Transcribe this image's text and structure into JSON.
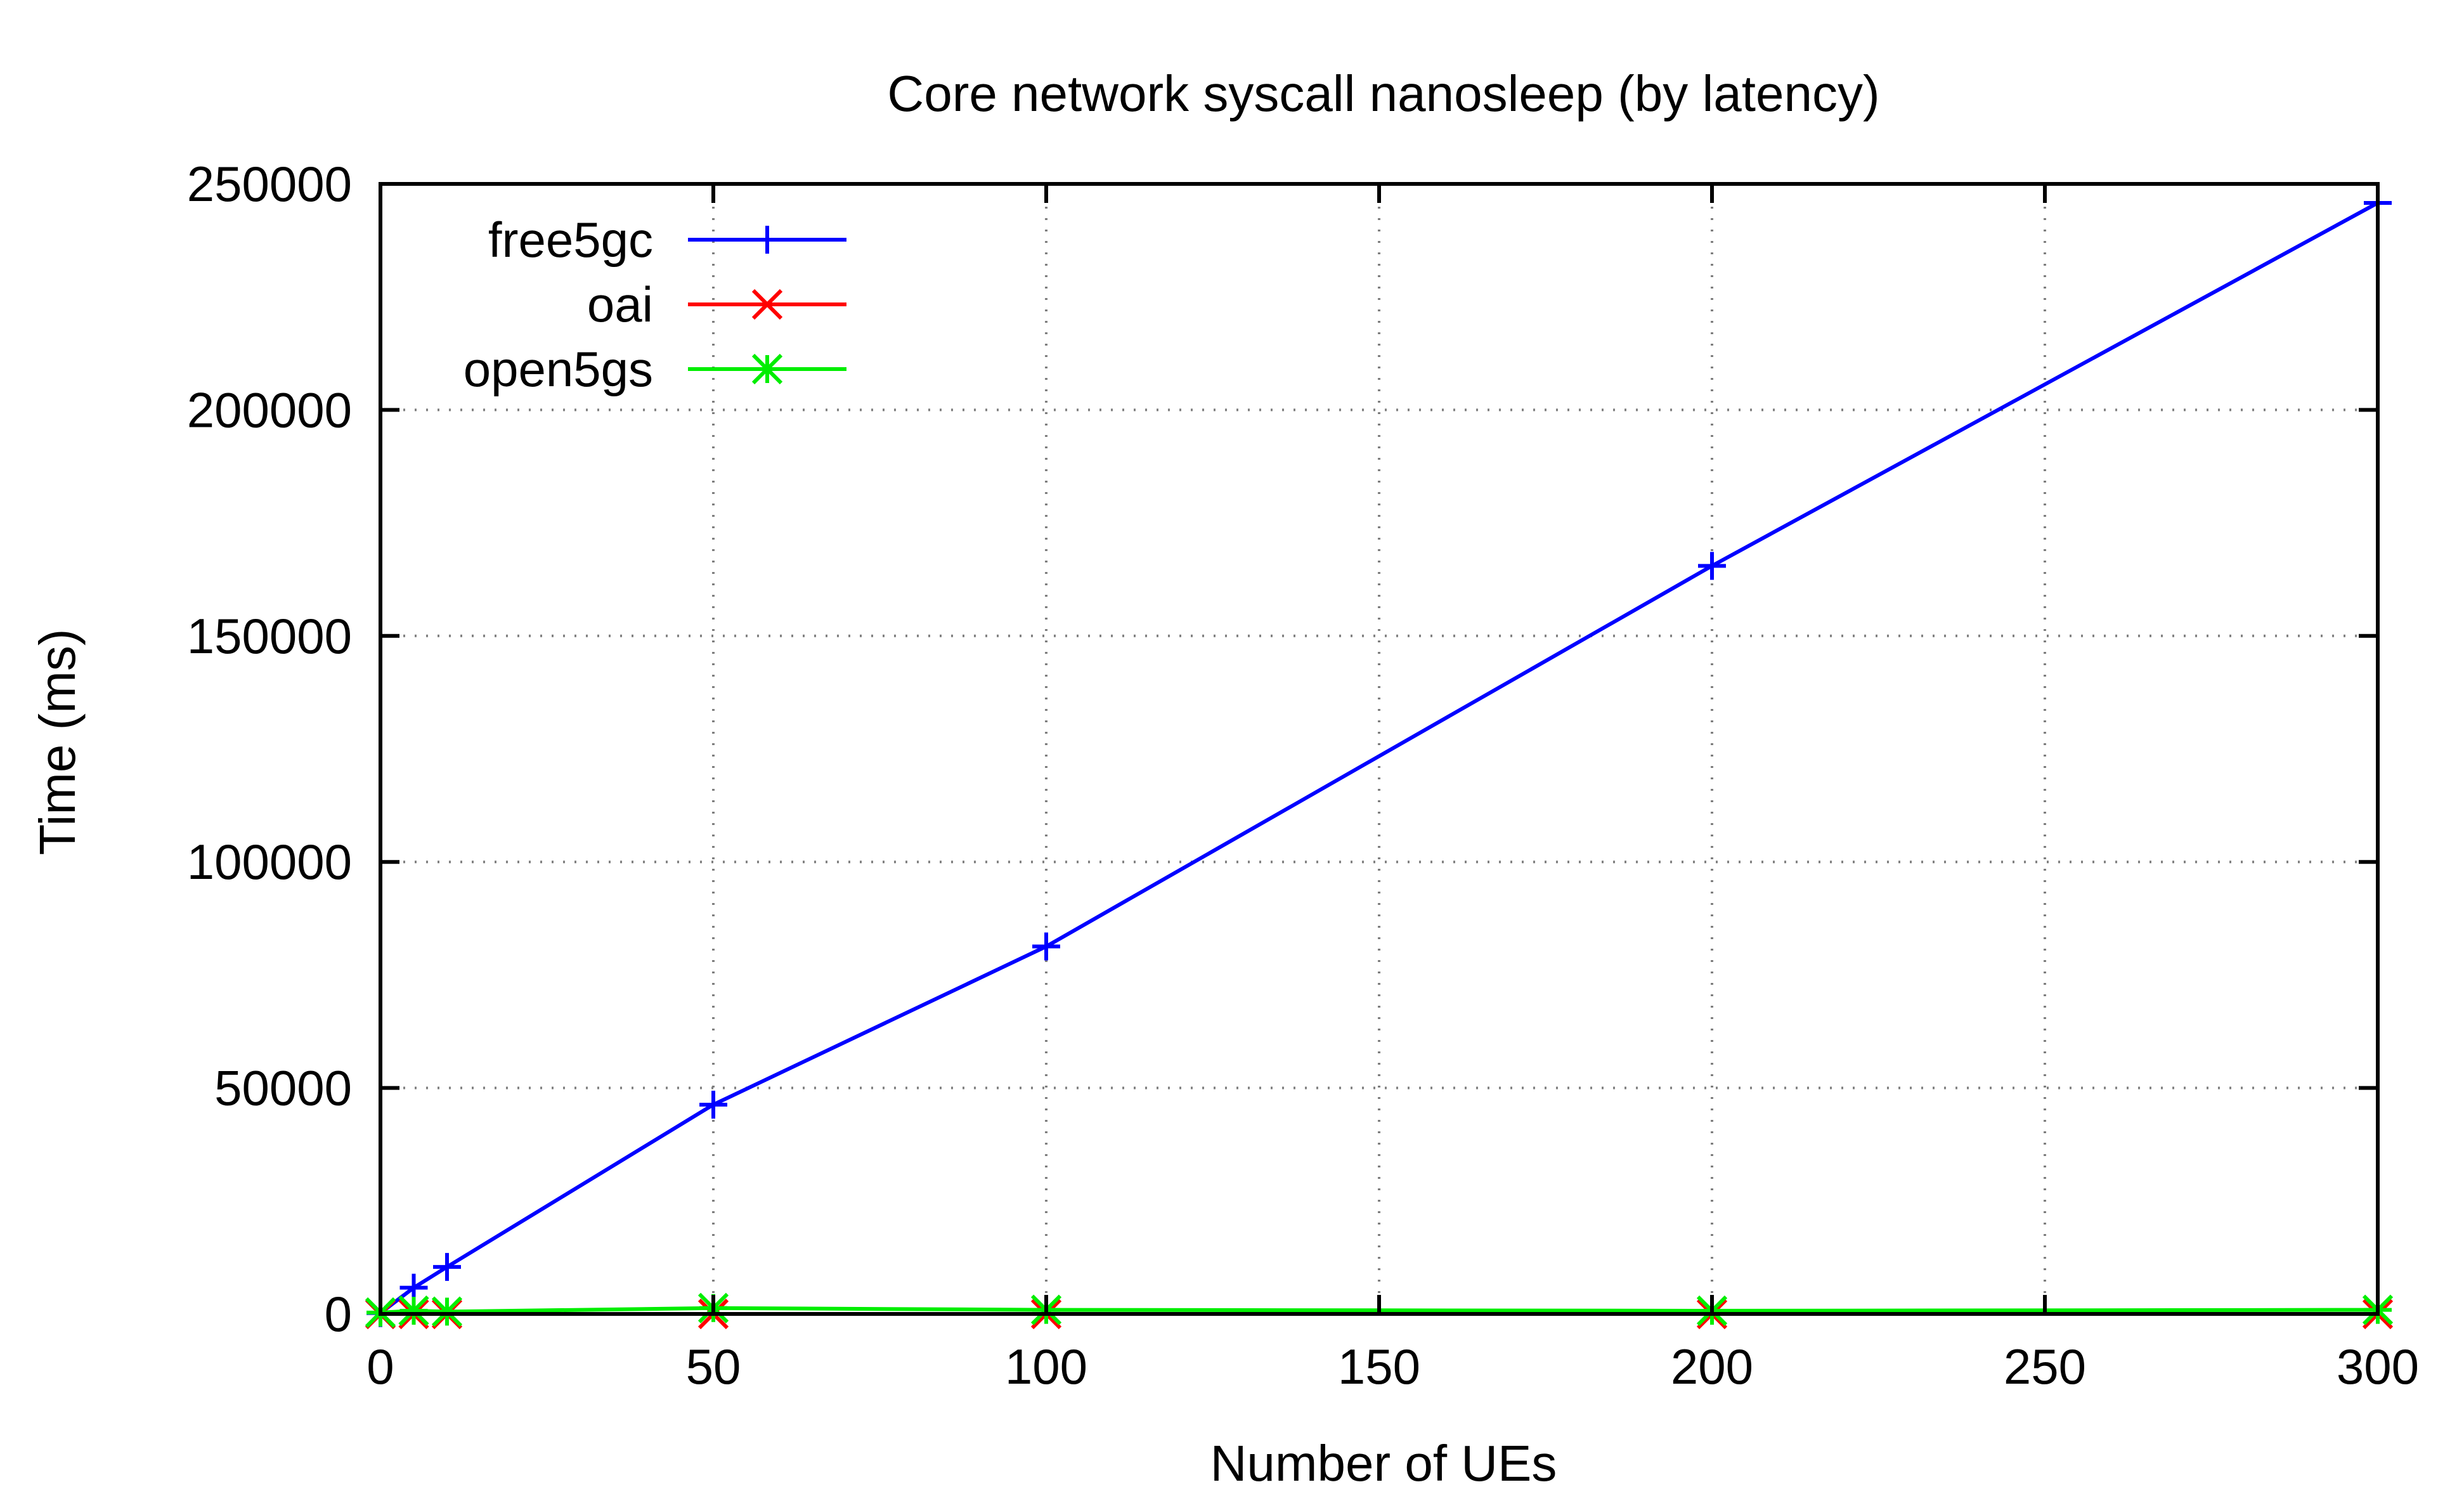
{
  "chart_data": {
    "type": "line",
    "title": "Core network syscall nanosleep (by latency)",
    "xlabel": "Number of UEs",
    "ylabel": "Time (ms)",
    "xlim": [
      0,
      300
    ],
    "ylim": [
      0,
      250000
    ],
    "xticks": [
      0,
      50,
      100,
      150,
      200,
      250,
      300
    ],
    "xtick_labels": [
      "0",
      "50",
      "100",
      "150",
      "200",
      "250",
      "300"
    ],
    "yticks": [
      0,
      50000,
      100000,
      150000,
      200000,
      250000
    ],
    "ytick_labels": [
      "0",
      "50000",
      "100000",
      "150000",
      "200000",
      "250000"
    ],
    "grid": true,
    "legend_position": "top-left",
    "series": [
      {
        "name": "free5gc",
        "color": "#0000ff",
        "marker": "plus",
        "x": [
          0,
          5,
          10,
          50,
          100,
          200,
          300
        ],
        "y": [
          200,
          5800,
          10400,
          46300,
          81300,
          165500,
          245800
        ]
      },
      {
        "name": "oai",
        "color": "#ff0000",
        "marker": "cross",
        "x": [
          0,
          5,
          10,
          50,
          100,
          200,
          300
        ],
        "y": [
          0,
          0,
          0,
          0,
          0,
          0,
          0
        ]
      },
      {
        "name": "open5gs",
        "color": "#00ee00",
        "marker": "star",
        "x": [
          0,
          5,
          10,
          50,
          100,
          200,
          300
        ],
        "y": [
          300,
          700,
          500,
          1300,
          900,
          700,
          900
        ]
      }
    ]
  }
}
